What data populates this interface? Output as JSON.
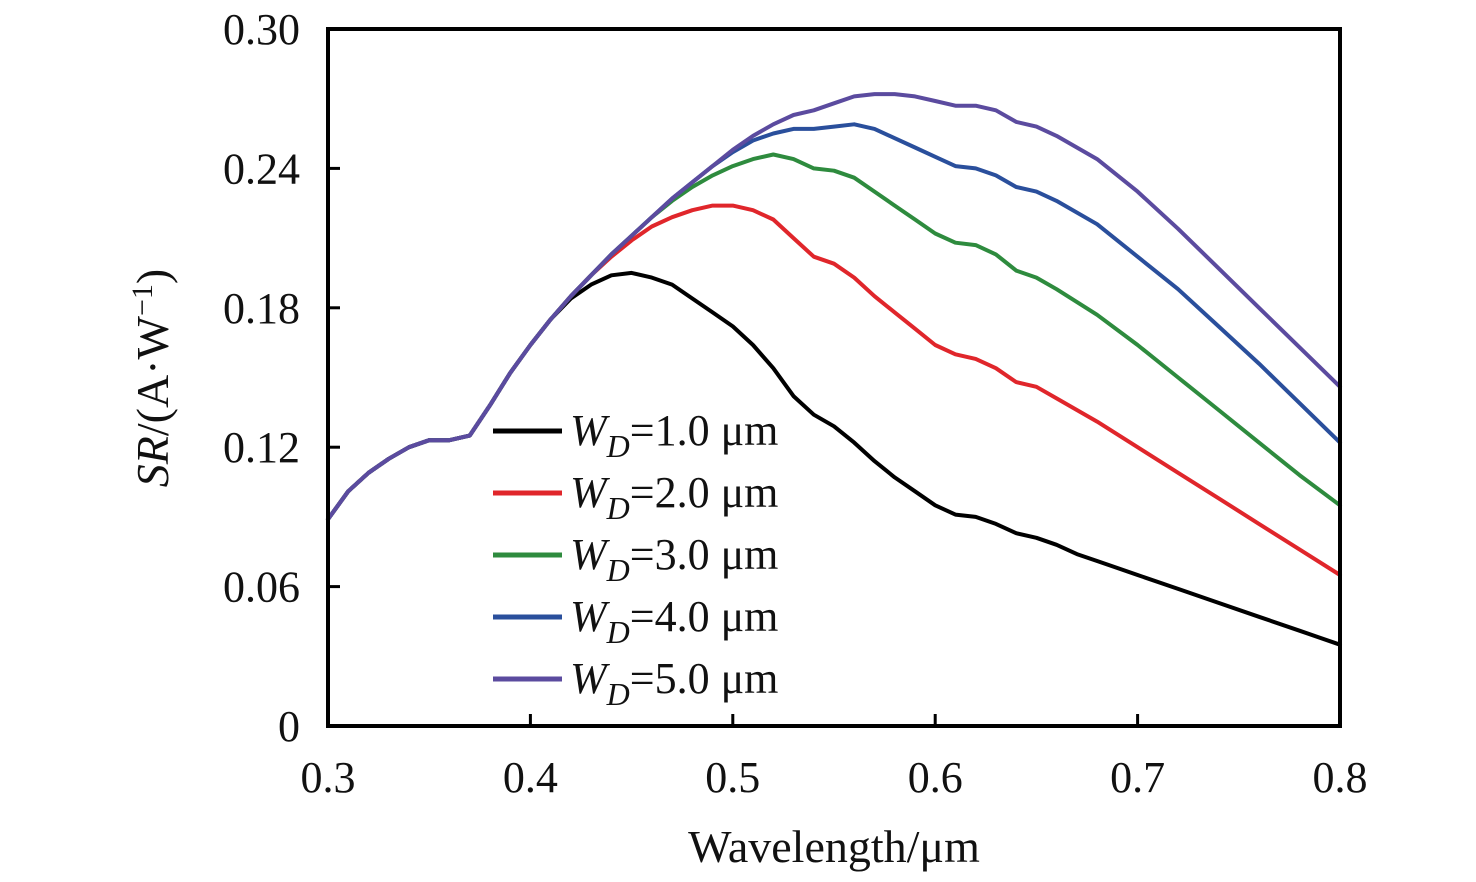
{
  "chart_data": {
    "type": "line",
    "title": "",
    "xlabel": "Wavelength/μm",
    "ylabel": {
      "italic": "SR",
      "rest": "/(A·W",
      "sup": "−1",
      "close": ")"
    },
    "xlim": [
      0.3,
      0.8
    ],
    "ylim": [
      0,
      0.3
    ],
    "x_ticks": [
      0.3,
      0.4,
      0.5,
      0.6,
      0.7,
      0.8
    ],
    "x_tick_labels": [
      "0.3",
      "0.4",
      "0.5",
      "0.6",
      "0.7",
      "0.8"
    ],
    "y_ticks": [
      0,
      0.06,
      0.12,
      0.18,
      0.24,
      0.3
    ],
    "y_tick_labels": [
      "0",
      "0.06",
      "0.12",
      "0.18",
      "0.24",
      "0.30"
    ],
    "grid": false,
    "legend_position": "lower-center",
    "series": [
      {
        "name": "W_D=1.0 μm",
        "legend": {
          "var": "W",
          "sub": "D",
          "text": "=1.0 μm"
        },
        "color": "#000000",
        "points": [
          [
            0.3,
            0.089
          ],
          [
            0.31,
            0.101
          ],
          [
            0.32,
            0.109
          ],
          [
            0.33,
            0.115
          ],
          [
            0.34,
            0.12
          ],
          [
            0.35,
            0.123
          ],
          [
            0.36,
            0.123
          ],
          [
            0.37,
            0.125
          ],
          [
            0.38,
            0.138
          ],
          [
            0.39,
            0.152
          ],
          [
            0.4,
            0.164
          ],
          [
            0.41,
            0.175
          ],
          [
            0.42,
            0.184
          ],
          [
            0.43,
            0.19
          ],
          [
            0.44,
            0.194
          ],
          [
            0.45,
            0.195
          ],
          [
            0.46,
            0.193
          ],
          [
            0.47,
            0.19
          ],
          [
            0.48,
            0.184
          ],
          [
            0.49,
            0.178
          ],
          [
            0.5,
            0.172
          ],
          [
            0.51,
            0.164
          ],
          [
            0.52,
            0.154
          ],
          [
            0.53,
            0.142
          ],
          [
            0.54,
            0.134
          ],
          [
            0.55,
            0.129
          ],
          [
            0.56,
            0.122
          ],
          [
            0.57,
            0.114
          ],
          [
            0.58,
            0.107
          ],
          [
            0.59,
            0.101
          ],
          [
            0.6,
            0.095
          ],
          [
            0.61,
            0.091
          ],
          [
            0.62,
            0.09
          ],
          [
            0.63,
            0.087
          ],
          [
            0.64,
            0.083
          ],
          [
            0.65,
            0.081
          ],
          [
            0.66,
            0.078
          ],
          [
            0.67,
            0.074
          ],
          [
            0.68,
            0.071
          ],
          [
            0.69,
            0.068
          ],
          [
            0.7,
            0.065
          ],
          [
            0.72,
            0.059
          ],
          [
            0.74,
            0.053
          ],
          [
            0.76,
            0.047
          ],
          [
            0.78,
            0.041
          ],
          [
            0.8,
            0.035
          ]
        ]
      },
      {
        "name": "W_D=2.0 μm",
        "legend": {
          "var": "W",
          "sub": "D",
          "text": "=2.0 μm"
        },
        "color": "#e0262b",
        "points": [
          [
            0.3,
            0.089
          ],
          [
            0.31,
            0.101
          ],
          [
            0.32,
            0.109
          ],
          [
            0.33,
            0.115
          ],
          [
            0.34,
            0.12
          ],
          [
            0.35,
            0.123
          ],
          [
            0.36,
            0.123
          ],
          [
            0.37,
            0.125
          ],
          [
            0.38,
            0.138
          ],
          [
            0.39,
            0.152
          ],
          [
            0.4,
            0.164
          ],
          [
            0.41,
            0.175
          ],
          [
            0.42,
            0.185
          ],
          [
            0.43,
            0.194
          ],
          [
            0.44,
            0.202
          ],
          [
            0.45,
            0.209
          ],
          [
            0.46,
            0.215
          ],
          [
            0.47,
            0.219
          ],
          [
            0.48,
            0.222
          ],
          [
            0.49,
            0.224
          ],
          [
            0.5,
            0.224
          ],
          [
            0.51,
            0.222
          ],
          [
            0.52,
            0.218
          ],
          [
            0.53,
            0.21
          ],
          [
            0.54,
            0.202
          ],
          [
            0.55,
            0.199
          ],
          [
            0.56,
            0.193
          ],
          [
            0.57,
            0.185
          ],
          [
            0.58,
            0.178
          ],
          [
            0.59,
            0.171
          ],
          [
            0.6,
            0.164
          ],
          [
            0.61,
            0.16
          ],
          [
            0.62,
            0.158
          ],
          [
            0.63,
            0.154
          ],
          [
            0.64,
            0.148
          ],
          [
            0.65,
            0.146
          ],
          [
            0.66,
            0.141
          ],
          [
            0.68,
            0.131
          ],
          [
            0.7,
            0.12
          ],
          [
            0.72,
            0.109
          ],
          [
            0.74,
            0.098
          ],
          [
            0.76,
            0.087
          ],
          [
            0.78,
            0.076
          ],
          [
            0.8,
            0.065
          ]
        ]
      },
      {
        "name": "W_D=3.0 μm",
        "legend": {
          "var": "W",
          "sub": "D",
          "text": "=3.0 μm"
        },
        "color": "#2e8b3e",
        "points": [
          [
            0.3,
            0.089
          ],
          [
            0.31,
            0.101
          ],
          [
            0.32,
            0.109
          ],
          [
            0.33,
            0.115
          ],
          [
            0.34,
            0.12
          ],
          [
            0.35,
            0.123
          ],
          [
            0.36,
            0.123
          ],
          [
            0.37,
            0.125
          ],
          [
            0.38,
            0.138
          ],
          [
            0.39,
            0.152
          ],
          [
            0.4,
            0.164
          ],
          [
            0.41,
            0.175
          ],
          [
            0.42,
            0.185
          ],
          [
            0.43,
            0.194
          ],
          [
            0.44,
            0.203
          ],
          [
            0.45,
            0.211
          ],
          [
            0.46,
            0.219
          ],
          [
            0.47,
            0.226
          ],
          [
            0.48,
            0.232
          ],
          [
            0.49,
            0.237
          ],
          [
            0.5,
            0.241
          ],
          [
            0.51,
            0.244
          ],
          [
            0.52,
            0.246
          ],
          [
            0.53,
            0.244
          ],
          [
            0.54,
            0.24
          ],
          [
            0.55,
            0.239
          ],
          [
            0.56,
            0.236
          ],
          [
            0.57,
            0.23
          ],
          [
            0.58,
            0.224
          ],
          [
            0.59,
            0.218
          ],
          [
            0.6,
            0.212
          ],
          [
            0.61,
            0.208
          ],
          [
            0.62,
            0.207
          ],
          [
            0.63,
            0.203
          ],
          [
            0.64,
            0.196
          ],
          [
            0.65,
            0.193
          ],
          [
            0.66,
            0.188
          ],
          [
            0.68,
            0.177
          ],
          [
            0.7,
            0.164
          ],
          [
            0.72,
            0.15
          ],
          [
            0.74,
            0.136
          ],
          [
            0.76,
            0.122
          ],
          [
            0.78,
            0.108
          ],
          [
            0.8,
            0.095
          ]
        ]
      },
      {
        "name": "W_D=4.0 μm",
        "legend": {
          "var": "W",
          "sub": "D",
          "text": "=4.0 μm"
        },
        "color": "#2a4f9c",
        "points": [
          [
            0.3,
            0.089
          ],
          [
            0.31,
            0.101
          ],
          [
            0.32,
            0.109
          ],
          [
            0.33,
            0.115
          ],
          [
            0.34,
            0.12
          ],
          [
            0.35,
            0.123
          ],
          [
            0.36,
            0.123
          ],
          [
            0.37,
            0.125
          ],
          [
            0.38,
            0.138
          ],
          [
            0.39,
            0.152
          ],
          [
            0.4,
            0.164
          ],
          [
            0.41,
            0.175
          ],
          [
            0.42,
            0.185
          ],
          [
            0.43,
            0.194
          ],
          [
            0.44,
            0.203
          ],
          [
            0.45,
            0.211
          ],
          [
            0.46,
            0.219
          ],
          [
            0.47,
            0.227
          ],
          [
            0.48,
            0.234
          ],
          [
            0.49,
            0.241
          ],
          [
            0.5,
            0.247
          ],
          [
            0.51,
            0.252
          ],
          [
            0.52,
            0.255
          ],
          [
            0.53,
            0.257
          ],
          [
            0.54,
            0.257
          ],
          [
            0.55,
            0.258
          ],
          [
            0.56,
            0.259
          ],
          [
            0.57,
            0.257
          ],
          [
            0.58,
            0.253
          ],
          [
            0.59,
            0.249
          ],
          [
            0.6,
            0.245
          ],
          [
            0.61,
            0.241
          ],
          [
            0.62,
            0.24
          ],
          [
            0.63,
            0.237
          ],
          [
            0.64,
            0.232
          ],
          [
            0.65,
            0.23
          ],
          [
            0.66,
            0.226
          ],
          [
            0.68,
            0.216
          ],
          [
            0.7,
            0.202
          ],
          [
            0.72,
            0.188
          ],
          [
            0.74,
            0.172
          ],
          [
            0.76,
            0.156
          ],
          [
            0.78,
            0.139
          ],
          [
            0.8,
            0.122
          ]
        ]
      },
      {
        "name": "W_D=5.0 μm",
        "legend": {
          "var": "W",
          "sub": "D",
          "text": "=5.0 μm"
        },
        "color": "#5b4b9f",
        "points": [
          [
            0.3,
            0.089
          ],
          [
            0.31,
            0.101
          ],
          [
            0.32,
            0.109
          ],
          [
            0.33,
            0.115
          ],
          [
            0.34,
            0.12
          ],
          [
            0.35,
            0.123
          ],
          [
            0.36,
            0.123
          ],
          [
            0.37,
            0.125
          ],
          [
            0.38,
            0.138
          ],
          [
            0.39,
            0.152
          ],
          [
            0.4,
            0.164
          ],
          [
            0.41,
            0.175
          ],
          [
            0.42,
            0.185
          ],
          [
            0.43,
            0.194
          ],
          [
            0.44,
            0.203
          ],
          [
            0.45,
            0.211
          ],
          [
            0.46,
            0.219
          ],
          [
            0.47,
            0.227
          ],
          [
            0.48,
            0.234
          ],
          [
            0.49,
            0.241
          ],
          [
            0.5,
            0.248
          ],
          [
            0.51,
            0.254
          ],
          [
            0.52,
            0.259
          ],
          [
            0.53,
            0.263
          ],
          [
            0.54,
            0.265
          ],
          [
            0.55,
            0.268
          ],
          [
            0.56,
            0.271
          ],
          [
            0.57,
            0.272
          ],
          [
            0.58,
            0.272
          ],
          [
            0.59,
            0.271
          ],
          [
            0.6,
            0.269
          ],
          [
            0.61,
            0.267
          ],
          [
            0.62,
            0.267
          ],
          [
            0.63,
            0.265
          ],
          [
            0.64,
            0.26
          ],
          [
            0.65,
            0.258
          ],
          [
            0.66,
            0.254
          ],
          [
            0.68,
            0.244
          ],
          [
            0.7,
            0.23
          ],
          [
            0.72,
            0.214
          ],
          [
            0.74,
            0.197
          ],
          [
            0.76,
            0.18
          ],
          [
            0.78,
            0.163
          ],
          [
            0.8,
            0.146
          ]
        ]
      }
    ]
  }
}
